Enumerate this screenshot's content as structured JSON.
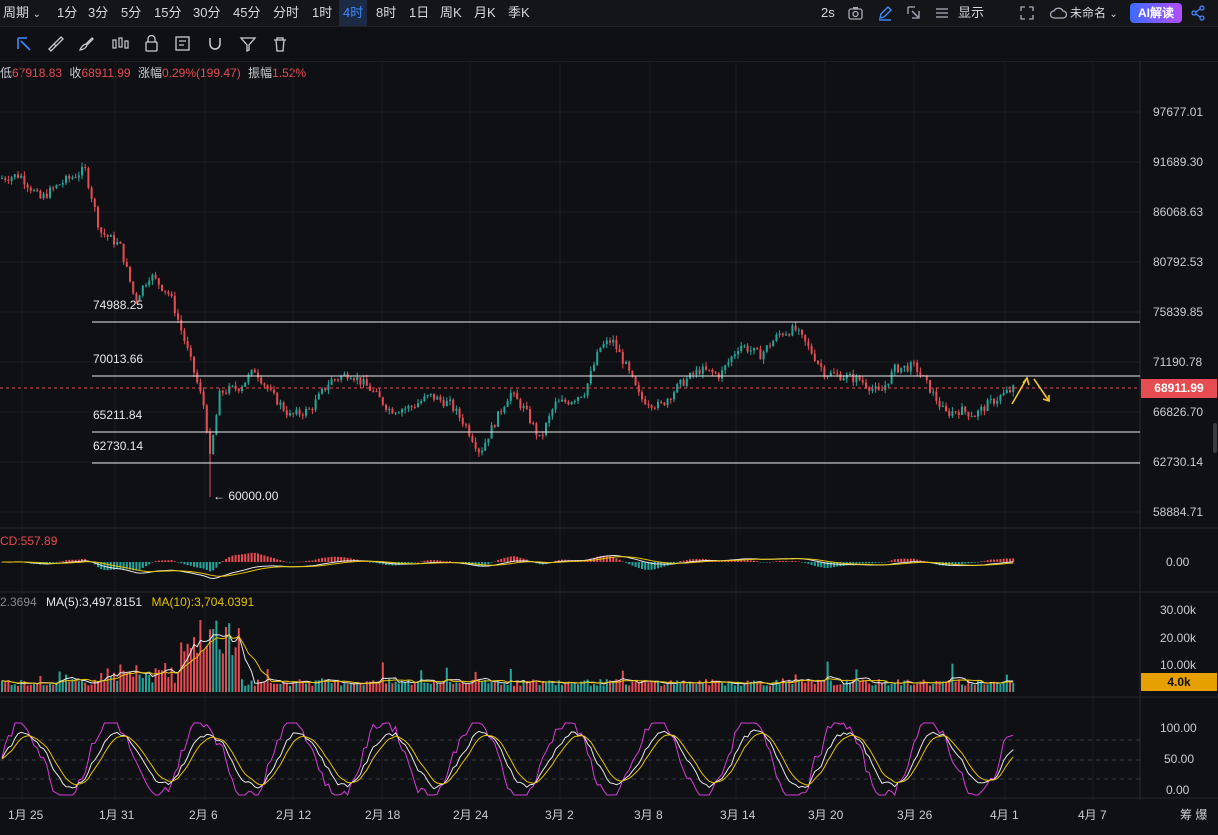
{
  "topbar": {
    "period_label": "周期",
    "timeframes": [
      "1分",
      "3分",
      "5分",
      "15分",
      "30分",
      "45分",
      "分时",
      "1时",
      "4时",
      "8时",
      "1日",
      "周K",
      "月K",
      "季K"
    ],
    "active_timeframe": "4时",
    "right": {
      "interval": "2s",
      "display": "显示",
      "layout_name": "未命名",
      "ai_button": "AI解读"
    }
  },
  "ohlc": {
    "low_label": "低",
    "low": "67918.83",
    "close_label": "收",
    "close": "68911.99",
    "change_label": "涨幅",
    "change": "0.29%(199.47)",
    "amp_label": "振幅",
    "amp": "1.52%"
  },
  "levels": [
    "74988.25",
    "70013.66",
    "65211.84",
    "62730.14"
  ],
  "low_marker": "← 60000.00",
  "price_axis": [
    "97677.01",
    "91689.30",
    "86068.63",
    "80792.53",
    "75839.85",
    "71190.78",
    "66826.70",
    "62730.14",
    "58884.71"
  ],
  "current_price": "68911.99",
  "macd": {
    "label": "CD:557.89",
    "axis_zero": "0.00"
  },
  "volume": {
    "label_prefix": "2.3694",
    "ma5": "MA(5):3,497.8151",
    "ma10": "MA(10):3,704.0391",
    "axis": [
      "30.00k",
      "20.00k",
      "10.00k"
    ],
    "current": "4.0k"
  },
  "kdj": {
    "axis": [
      "100.00",
      "50.00",
      "0.00"
    ]
  },
  "x_axis": [
    "1月 25",
    "1月 31",
    "2月 6",
    "2月 12",
    "2月 18",
    "2月 24",
    "3月 2",
    "3月 8",
    "3月 14",
    "3月 20",
    "3月 26",
    "4月 1",
    "4月 7"
  ],
  "x_axis_right": "筹 爆",
  "colors": {
    "up": "#26a69a",
    "down": "#e54d52",
    "accent": "#3d8bff",
    "ma10": "#e6c200"
  },
  "chart_data": {
    "type": "candlestick",
    "title": "",
    "x": [
      "1月 25",
      "1月 31",
      "2月 6",
      "2月 12",
      "2月 18",
      "2月 24",
      "3月 2",
      "3月 8",
      "3月 14",
      "3月 20",
      "3月 26",
      "4月 1"
    ],
    "close_approx": [
      89000,
      80000,
      68000,
      69000,
      68000,
      65500,
      68000,
      67500,
      73500,
      70500,
      66500,
      68911.99
    ],
    "ylim": [
      58000,
      99000
    ],
    "horizontal_levels": [
      74988.25,
      70013.66,
      65211.84,
      62730.14
    ],
    "annotated_low": 60000.0
  }
}
